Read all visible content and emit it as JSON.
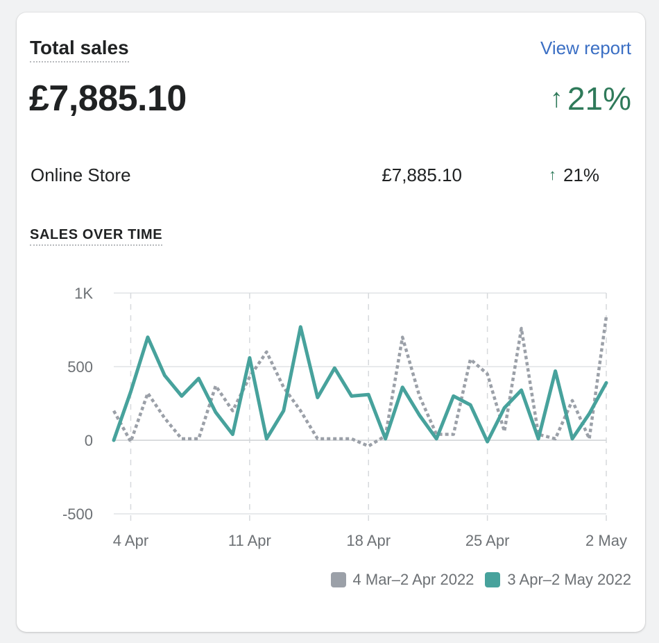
{
  "card": {
    "title": "Total sales",
    "view_report": "View report",
    "total_amount": "£7,885.10",
    "total_change": "21%",
    "arrow": "↑"
  },
  "breakdown": [
    {
      "label": "Online Store",
      "amount": "£7,885.10",
      "change": "21%"
    }
  ],
  "section_title": "SALES OVER TIME",
  "colors": {
    "current": "#47a29c",
    "previous": "#9ba0a8",
    "positive": "#2f7a5a",
    "link": "#3b6fc4"
  },
  "chart_data": {
    "type": "line",
    "x": [
      "3 Apr",
      "4 Apr",
      "5 Apr",
      "6 Apr",
      "7 Apr",
      "8 Apr",
      "9 Apr",
      "10 Apr",
      "11 Apr",
      "12 Apr",
      "13 Apr",
      "14 Apr",
      "15 Apr",
      "16 Apr",
      "17 Apr",
      "18 Apr",
      "19 Apr",
      "20 Apr",
      "21 Apr",
      "22 Apr",
      "23 Apr",
      "24 Apr",
      "25 Apr",
      "26 Apr",
      "27 Apr",
      "28 Apr",
      "29 Apr",
      "30 Apr",
      "1 May",
      "2 May"
    ],
    "x_ticks": [
      "4 Apr",
      "11 Apr",
      "18 Apr",
      "25 Apr",
      "2 May"
    ],
    "y_ticks": [
      "1K",
      "500",
      "0",
      "-500"
    ],
    "y_tick_values": [
      1000,
      500,
      0,
      -500
    ],
    "ylim": [
      -500,
      1000
    ],
    "grid": true,
    "legend_position": "bottom-right",
    "series": [
      {
        "name": "4 Mar–2 Apr 2022",
        "style": "dotted",
        "values": [
          200,
          -10,
          320,
          150,
          10,
          10,
          370,
          200,
          430,
          600,
          360,
          200,
          10,
          10,
          10,
          -40,
          30,
          700,
          300,
          40,
          40,
          550,
          450,
          60,
          760,
          40,
          10,
          270,
          10,
          840
        ]
      },
      {
        "name": "3 Apr–2 May 2022",
        "style": "solid",
        "values": [
          0,
          330,
          700,
          440,
          300,
          420,
          190,
          40,
          560,
          10,
          200,
          770,
          290,
          490,
          300,
          310,
          10,
          360,
          170,
          10,
          300,
          240,
          -10,
          220,
          340,
          10,
          470,
          10,
          180,
          390
        ]
      }
    ]
  }
}
